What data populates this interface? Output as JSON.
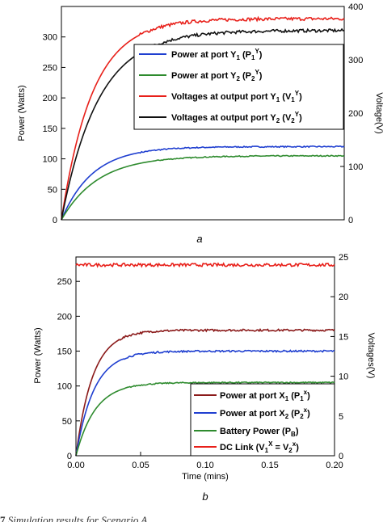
{
  "caption_number": "7",
  "caption_text": "Simulation results for Scenario A",
  "chart_data": [
    {
      "type": "line",
      "panel_label": "a",
      "xlabel": "",
      "ylabel": "Power (Watts)",
      "ylabel_right": "Voltage(V)",
      "xlim": [
        0,
        1
      ],
      "ylim": [
        0,
        350
      ],
      "ylim_right": [
        0,
        400
      ],
      "yticks": [
        "0",
        "50",
        "100",
        "150",
        "200",
        "250",
        "300"
      ],
      "yticks_right": [
        "0",
        "100",
        "200",
        "300",
        "400"
      ],
      "legend_position": "center-right",
      "grid": false,
      "series": [
        {
          "name": "Power at port Y1 (P1Y)",
          "axis": "left",
          "color": "#1f3fd0",
          "final_value": 120,
          "tau": 0.11
        },
        {
          "name": "Power at port Y2 (P2Y)",
          "axis": "left",
          "color": "#2e8b2e",
          "final_value": 105,
          "tau": 0.13
        },
        {
          "name": "Voltages at output port Y1 (V1Y)",
          "axis": "right",
          "color": "#e8201a",
          "final_value": 377,
          "tau": 0.11
        },
        {
          "name": "Voltages at output port Y2 (V2Y)",
          "axis": "right",
          "color": "#111111",
          "final_value": 355,
          "tau": 0.13
        }
      ]
    },
    {
      "type": "line",
      "panel_label": "b",
      "xlabel": "Time (mins)",
      "ylabel": "Power (Watts)",
      "ylabel_right": "Voltages(V)",
      "xlim": [
        0,
        0.2
      ],
      "ylim": [
        0,
        285
      ],
      "ylim_right": [
        0,
        25
      ],
      "xticks": [
        "0.00",
        "0.05",
        "0.10",
        "0.15",
        "0.20"
      ],
      "yticks": [
        "0",
        "50",
        "100",
        "150",
        "200",
        "250"
      ],
      "yticks_right": [
        "0",
        "5",
        "10",
        "15",
        "20",
        "25"
      ],
      "legend_position": "bottom-right",
      "grid": false,
      "series": [
        {
          "name": "Power at port X1 (P1X)",
          "axis": "left",
          "color": "#8b1a1a",
          "final_value": 180,
          "tau": 0.013
        },
        {
          "name": "Power at port X2 (P2X)",
          "axis": "left",
          "color": "#1f3fd0",
          "final_value": 150,
          "tau": 0.014
        },
        {
          "name": "Battery Power (PB)",
          "axis": "left",
          "color": "#2e8b2e",
          "final_value": 105,
          "tau": 0.015
        },
        {
          "name": "DC Link (V1X = V2X)",
          "axis": "right",
          "color": "#e8201a",
          "final_value": 24,
          "tau": 0
        }
      ]
    }
  ]
}
